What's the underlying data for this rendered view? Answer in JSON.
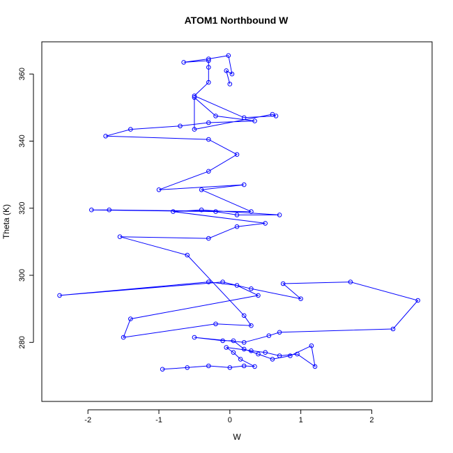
{
  "chart_data": {
    "type": "line",
    "title": "ATOM1 Northbound W",
    "xlabel": "W",
    "ylabel": "Theta (K)",
    "xlim": [
      -2.65,
      2.85
    ],
    "ylim": [
      262.4,
      369.6
    ],
    "x_ticks": [
      -2,
      -1,
      0,
      1,
      2
    ],
    "y_ticks": [
      280,
      300,
      320,
      340,
      360
    ],
    "grid": false,
    "series_color": "#0000ff",
    "marker": "open-circle",
    "line_style": "solid",
    "series": [
      {
        "x": [
          -0.95,
          -0.6,
          -0.3,
          0.0,
          0.2,
          0.35,
          0.15,
          0.05,
          -0.05,
          0.3,
          0.5,
          0.7,
          0.95,
          1.2,
          1.15,
          0.85,
          0.6,
          0.4,
          0.2,
          0.05,
          -0.1,
          -0.5,
          0.2,
          0.55,
          0.7,
          2.3,
          2.65,
          1.7,
          0.75,
          1.0,
          0.3,
          -0.1,
          -2.4,
          -0.3,
          0.1,
          0.4,
          -1.4,
          -1.5,
          -0.2,
          0.3,
          0.2,
          -0.6,
          -1.55,
          -0.3,
          0.1,
          0.5,
          -0.8,
          -0.4,
          0.7,
          0.1,
          -0.2,
          -1.95,
          -1.7,
          0.3,
          -0.4,
          0.2,
          -1.0,
          -0.3,
          0.1,
          -0.3,
          -1.75,
          -1.4,
          -0.7,
          -0.3,
          0.35,
          -0.2,
          -0.5,
          -0.5,
          0.6,
          0.65,
          0.2,
          -0.5,
          -0.3,
          -0.3,
          -0.3,
          -0.65,
          -0.3,
          -0.02,
          0.03,
          -0.05,
          0.0
        ],
        "y": [
          272,
          272.5,
          273,
          272.5,
          273,
          272.8,
          275,
          277,
          278.5,
          277.5,
          277,
          276,
          276.5,
          272.8,
          279,
          276,
          275,
          276.5,
          278,
          280.5,
          280.5,
          281.5,
          280,
          282,
          283,
          284,
          292.5,
          298,
          297.5,
          293,
          296,
          298,
          294,
          298,
          297,
          294,
          287,
          281.5,
          285.5,
          285,
          288,
          306,
          311.5,
          311,
          314.5,
          315.5,
          319,
          319.5,
          318,
          318,
          319,
          319.5,
          319.5,
          319,
          325.5,
          327,
          325.5,
          331,
          336,
          340.5,
          341.5,
          343.5,
          344.5,
          345.5,
          346,
          347.5,
          353,
          343.5,
          348,
          347.5,
          347,
          353.5,
          357.5,
          362,
          364,
          363.5,
          364.5,
          365.5,
          360,
          361,
          357
        ]
      }
    ]
  }
}
